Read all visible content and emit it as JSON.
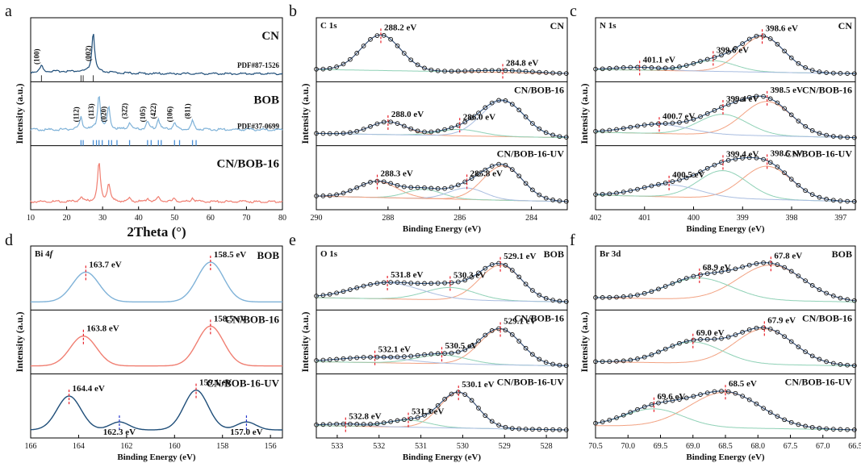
{
  "colors": {
    "cn": "#1f4e79",
    "bob": "#7fb2d8",
    "cnbob": "#f07f72",
    "cnbobuv": "#1f4e79",
    "fit": "#2d4f7a",
    "peakA": "#f2a282",
    "peakB": "#8fd1b6",
    "peakC": "#a9bde0",
    "marker": "#e8212a",
    "markerBlue": "#2233cc",
    "ref": "#4a8fd6"
  },
  "chart_data": [
    {
      "type": "line",
      "panel_letter": "a",
      "xlabel": "2Theta (°)",
      "ylabel": "Intensity (a.u.)",
      "xlim": [
        10,
        80
      ],
      "xticks": [
        "10",
        "20",
        "30",
        "40",
        "50",
        "60",
        "70",
        "80"
      ],
      "series": [
        {
          "name": "CN",
          "ref": "PDF#87-1526",
          "peaks": [
            {
              "x": 13.0,
              "h": 0.16
            },
            {
              "x": 27.4,
              "h": 1.0
            }
          ],
          "hkl": [
            {
              "x": 13.0,
              "text": "(100)"
            },
            {
              "x": 27.4,
              "text": "(002)"
            }
          ]
        },
        {
          "name": "BOB",
          "ref": "PDF#37-0699",
          "peaks": [
            {
              "x": 24.0,
              "h": 0.35
            },
            {
              "x": 29.0,
              "h": 1.0
            },
            {
              "x": 31.7,
              "h": 0.65
            },
            {
              "x": 37.5,
              "h": 0.2
            },
            {
              "x": 42.5,
              "h": 0.22
            },
            {
              "x": 45.5,
              "h": 0.3
            },
            {
              "x": 50.0,
              "h": 0.2
            },
            {
              "x": 55.0,
              "h": 0.25
            }
          ],
          "hkl": [
            {
              "x": 24.0,
              "text": "(112)"
            },
            {
              "x": 28.2,
              "text": "(113)"
            },
            {
              "x": 31.7,
              "text": "(020)"
            },
            {
              "x": 37.5,
              "text": "(32̄2)"
            },
            {
              "x": 42.5,
              "text": "(105)"
            },
            {
              "x": 45.5,
              "text": "(422)"
            },
            {
              "x": 50.0,
              "text": "(106)"
            },
            {
              "x": 55.0,
              "text": "(811)"
            }
          ]
        },
        {
          "name": "CN/BOB-16",
          "peaks": [
            {
              "x": 24.0,
              "h": 0.12
            },
            {
              "x": 29.0,
              "h": 1.0
            },
            {
              "x": 31.7,
              "h": 0.45
            },
            {
              "x": 37.5,
              "h": 0.08
            },
            {
              "x": 42.5,
              "h": 0.08
            },
            {
              "x": 45.5,
              "h": 0.12
            },
            {
              "x": 50.0,
              "h": 0.08
            },
            {
              "x": 55.0,
              "h": 0.1
            }
          ]
        }
      ],
      "reference_lines": [
        13.0,
        24.0,
        24.6,
        27.4,
        28.3,
        29.0,
        29.9,
        31.7,
        32.5,
        34.0,
        37.5,
        42.5,
        43.5,
        45.5,
        46.3,
        50.0,
        51.4,
        55.0,
        56.0
      ]
    },
    {
      "type": "line",
      "panel_letter": "b",
      "element": "C 1s",
      "xlabel": "Binding Energy (eV)",
      "ylabel": "Intensity (a.u.)",
      "xlim": [
        290,
        283
      ],
      "xticks": [
        "290",
        "288",
        "286",
        "284"
      ],
      "series": [
        {
          "name": "CN",
          "peaks": [
            {
              "x": 288.2,
              "h": 1.0,
              "w": 0.55
            },
            {
              "x": 284.8,
              "h": 0.06,
              "w": 0.8
            }
          ],
          "labels": [
            {
              "x": 288.2,
              "text": "288.2 eV"
            },
            {
              "x": 284.8,
              "text": "284.8 eV"
            }
          ]
        },
        {
          "name": "CN/BOB-16",
          "peaks": [
            {
              "x": 288.0,
              "h": 0.36,
              "w": 0.5
            },
            {
              "x": 286.0,
              "h": 0.18,
              "w": 0.6
            },
            {
              "x": 284.8,
              "h": 1.0,
              "w": 0.6
            }
          ],
          "labels": [
            {
              "x": 288.0,
              "text": "288.0 eV"
            },
            {
              "x": 286.0,
              "text": "286.0 eV"
            }
          ]
        },
        {
          "name": "CN/BOB-16-UV",
          "peaks": [
            {
              "x": 288.3,
              "h": 0.35,
              "w": 0.55
            },
            {
              "x": 287.0,
              "h": 0.2,
              "w": 0.5
            },
            {
              "x": 285.8,
              "h": 0.25,
              "w": 0.5
            },
            {
              "x": 284.8,
              "h": 0.75,
              "w": 0.55
            }
          ],
          "labels": [
            {
              "x": 288.3,
              "text": "288.3 eV"
            },
            {
              "x": 285.8,
              "text": "285.8 eV"
            }
          ]
        }
      ]
    },
    {
      "type": "line",
      "panel_letter": "c",
      "element": "N 1s",
      "xlabel": "Binding Energy (eV)",
      "ylabel": "Intensity (a.u.)",
      "xlim": [
        402,
        396.7
      ],
      "xticks": [
        "402",
        "401",
        "400",
        "399",
        "398",
        "397"
      ],
      "series": [
        {
          "name": "CN",
          "peaks": [
            {
              "x": 398.6,
              "h": 1.0,
              "w": 0.45
            },
            {
              "x": 399.6,
              "h": 0.3,
              "w": 0.45
            },
            {
              "x": 401.1,
              "h": 0.08,
              "w": 0.45
            }
          ],
          "labels": [
            {
              "x": 401.1,
              "text": "401.1 eV"
            },
            {
              "x": 399.6,
              "text": "399.6 eV"
            },
            {
              "x": 398.6,
              "text": "398.6 eV"
            }
          ]
        },
        {
          "name": "CN/BOB-16",
          "peaks": [
            {
              "x": 398.5,
              "h": 0.75,
              "w": 0.5
            },
            {
              "x": 399.4,
              "h": 0.45,
              "w": 0.5
            },
            {
              "x": 400.7,
              "h": 0.2,
              "w": 0.6
            }
          ],
          "labels": [
            {
              "x": 400.7,
              "text": "400.7 eV"
            },
            {
              "x": 399.4,
              "text": "399.4 eV"
            },
            {
              "x": 398.5,
              "text": "398.5 eV"
            }
          ]
        },
        {
          "name": "CN/BOB-16-UV",
          "peaks": [
            {
              "x": 398.5,
              "h": 0.6,
              "w": 0.5
            },
            {
              "x": 399.4,
              "h": 0.5,
              "w": 0.5
            },
            {
              "x": 400.5,
              "h": 0.22,
              "w": 0.6
            }
          ],
          "labels": [
            {
              "x": 400.5,
              "text": "400.5 eV"
            },
            {
              "x": 399.4,
              "text": "399.4 eV"
            },
            {
              "x": 398.5,
              "text": "398.5 eV"
            }
          ]
        }
      ]
    },
    {
      "type": "line",
      "panel_letter": "d",
      "element": "Bi 4",
      "element_italic": "f",
      "xlabel": "Binding Energy (eV)",
      "ylabel": "Intensity (a.u.)",
      "xlim": [
        166,
        155.5
      ],
      "xticks": [
        "166",
        "164",
        "162",
        "160",
        "158",
        "156"
      ],
      "series": [
        {
          "name": "BOB",
          "peaks": [
            {
              "x": 163.7,
              "h": 0.75,
              "w": 0.55
            },
            {
              "x": 158.5,
              "h": 1.0,
              "w": 0.55
            }
          ],
          "labels": [
            {
              "x": 163.7,
              "text": "163.7 eV"
            },
            {
              "x": 158.5,
              "text": "158.5 eV"
            }
          ]
        },
        {
          "name": "CN/BOB-16",
          "peaks": [
            {
              "x": 163.8,
              "h": 0.75,
              "w": 0.55
            },
            {
              "x": 158.5,
              "h": 1.0,
              "w": 0.55
            }
          ],
          "labels": [
            {
              "x": 163.8,
              "text": "163.8 eV"
            },
            {
              "x": 158.5,
              "text": "158.5 eV"
            }
          ]
        },
        {
          "name": "CN/BOB-16-UV",
          "peaks": [
            {
              "x": 164.4,
              "h": 0.85,
              "w": 0.5
            },
            {
              "x": 162.3,
              "h": 0.2,
              "w": 0.4
            },
            {
              "x": 159.1,
              "h": 1.0,
              "w": 0.5
            },
            {
              "x": 157.0,
              "h": 0.2,
              "w": 0.4
            }
          ],
          "labels": [
            {
              "x": 164.4,
              "text": "164.4 eV"
            },
            {
              "x": 162.3,
              "text": "162.3 eV"
            },
            {
              "x": 159.1,
              "text": "159.1 eV"
            },
            {
              "x": 157.0,
              "text": "157.0 eV"
            }
          ]
        }
      ]
    },
    {
      "type": "line",
      "panel_letter": "e",
      "element": "O 1s",
      "xlabel": "Binding Energy (eV)",
      "ylabel": "Intensity (a.u.)",
      "xlim": [
        533.5,
        527.5
      ],
      "xticks": [
        "533",
        "532",
        "531",
        "530",
        "529",
        "528"
      ],
      "series": [
        {
          "name": "BOB",
          "peaks": [
            {
              "x": 529.1,
              "h": 1.0,
              "w": 0.5
            },
            {
              "x": 530.3,
              "h": 0.35,
              "w": 0.6
            },
            {
              "x": 531.8,
              "h": 0.45,
              "w": 0.8
            }
          ],
          "labels": [
            {
              "x": 531.8,
              "text": "531.8 eV"
            },
            {
              "x": 530.3,
              "text": "530.3 eV"
            },
            {
              "x": 529.1,
              "text": "529.1 eV"
            }
          ]
        },
        {
          "name": "CN/BOB-16",
          "peaks": [
            {
              "x": 529.1,
              "h": 1.0,
              "w": 0.5
            },
            {
              "x": 530.5,
              "h": 0.25,
              "w": 0.6
            },
            {
              "x": 532.1,
              "h": 0.15,
              "w": 0.8
            }
          ],
          "labels": [
            {
              "x": 532.1,
              "text": "532.1 eV"
            },
            {
              "x": 530.5,
              "text": "530.5 eV"
            },
            {
              "x": 529.1,
              "text": "529.1 eV"
            }
          ]
        },
        {
          "name": "CN/BOB-16-UV",
          "peaks": [
            {
              "x": 530.1,
              "h": 1.0,
              "w": 0.45
            },
            {
              "x": 531.3,
              "h": 0.2,
              "w": 0.5
            },
            {
              "x": 532.8,
              "h": 0.06,
              "w": 0.5
            }
          ],
          "labels": [
            {
              "x": 532.8,
              "text": "532.8 eV"
            },
            {
              "x": 531.3,
              "text": "531.3 eV"
            },
            {
              "x": 530.1,
              "text": "530.1 eV"
            }
          ]
        }
      ]
    },
    {
      "type": "line",
      "panel_letter": "f",
      "element": "Br 3d",
      "xlabel": "Binding Energy (eV)",
      "ylabel": "Intensity (a.u.)",
      "xlim": [
        70.5,
        66.5
      ],
      "xticks": [
        "70.5",
        "70.0",
        "69.5",
        "69.0",
        "68.5",
        "68.0",
        "67.5",
        "67.0",
        "66.5"
      ],
      "series": [
        {
          "name": "BOB",
          "peaks": [
            {
              "x": 67.8,
              "h": 1.0,
              "w": 0.5
            },
            {
              "x": 68.9,
              "h": 0.6,
              "w": 0.5
            }
          ],
          "labels": [
            {
              "x": 68.9,
              "text": "68.9 eV"
            },
            {
              "x": 67.8,
              "text": "67.8 eV"
            }
          ]
        },
        {
          "name": "CN/BOB-16",
          "peaks": [
            {
              "x": 67.9,
              "h": 1.0,
              "w": 0.45
            },
            {
              "x": 69.0,
              "h": 0.6,
              "w": 0.45
            }
          ],
          "labels": [
            {
              "x": 69.0,
              "text": "69.0 eV"
            },
            {
              "x": 67.9,
              "text": "67.9 eV"
            }
          ]
        },
        {
          "name": "CN/BOB-16-UV",
          "peaks": [
            {
              "x": 68.5,
              "h": 1.0,
              "w": 0.55
            },
            {
              "x": 69.6,
              "h": 0.5,
              "w": 0.45
            }
          ],
          "labels": [
            {
              "x": 69.6,
              "text": "69.6 eV"
            },
            {
              "x": 68.5,
              "text": "68.5 eV"
            }
          ]
        }
      ]
    }
  ]
}
